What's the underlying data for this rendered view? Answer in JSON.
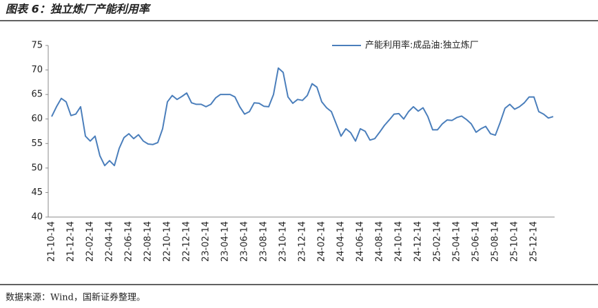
{
  "chart_data": {
    "type": "line",
    "title": "图表 6：独立炼厂产能利用率",
    "source": "数据来源：Wind，国新证券整理。",
    "categories": [
      "21-10-14",
      null,
      null,
      null,
      "21-12-14",
      null,
      null,
      null,
      "22-02-14",
      null,
      null,
      null,
      "22-04-14",
      null,
      null,
      null,
      "22-06-14",
      null,
      null,
      null,
      "22-08-14",
      null,
      null,
      null,
      "22-10-14",
      null,
      null,
      null,
      "22-12-14",
      null,
      null,
      null,
      "23-02-14",
      null,
      null,
      null,
      "23-04-14",
      null,
      null,
      null,
      "23-06-14",
      null,
      null,
      null,
      "23-08-14",
      null,
      null,
      null,
      "23-10-14",
      null,
      null,
      null,
      "23-12-14",
      null,
      null,
      null,
      "24-02-14",
      null,
      null,
      null,
      "24-04-14",
      null,
      null,
      null,
      "24-06-14",
      null,
      null,
      null,
      "24-08-14",
      null,
      null,
      null,
      "24-10-14",
      null,
      null,
      null,
      "24-12-14",
      null,
      null,
      null,
      "25-02-14",
      null,
      null,
      null,
      "25-04-14",
      null,
      null,
      null,
      "25-06-14",
      null,
      null,
      null,
      "25-08-14",
      null,
      null,
      null,
      "25-10-14",
      null,
      null,
      null,
      "25-12-14",
      null,
      null,
      null,
      null
    ],
    "series": [
      {
        "name": "产能利用率:成品油:独立炼厂",
        "color": "#4a7ebb",
        "values": [
          60.5,
          62.5,
          64.2,
          63.5,
          60.7,
          61,
          62.5,
          56.5,
          55.5,
          56.5,
          52.5,
          50.5,
          51.5,
          50.5,
          54,
          56.2,
          57,
          56,
          56.8,
          55.5,
          54.9,
          54.8,
          55.2,
          58,
          63.5,
          64.8,
          64,
          64.6,
          65.3,
          63.3,
          63,
          63,
          62.5,
          63,
          64.3,
          65,
          65,
          65,
          64.5,
          62.5,
          61,
          61.5,
          63.3,
          63.2,
          62.6,
          62.5,
          65,
          70.4,
          69.5,
          64.5,
          63.2,
          64,
          63.8,
          64.8,
          67.2,
          66.5,
          63.5,
          62.3,
          61.5,
          59,
          56.5,
          58,
          57.2,
          55.5,
          58,
          57.5,
          55.7,
          56,
          57.3,
          58.7,
          59.8,
          61,
          61.1,
          60,
          61.5,
          62.5,
          61.6,
          62.3,
          60.5,
          57.8,
          57.8,
          59,
          59.8,
          59.7,
          60.3,
          60.6,
          59.9,
          59,
          57.3,
          58,
          58.5,
          57,
          56.7,
          59.3,
          62.2,
          63,
          62,
          62.5,
          63.3,
          64.5,
          64.5,
          61.5,
          61,
          60.2,
          60.5
        ]
      }
    ],
    "ylim": [
      40,
      75
    ],
    "yticks": [
      40,
      45,
      50,
      55,
      60,
      65,
      70,
      75
    ],
    "legend": "top-right",
    "grid": false
  }
}
